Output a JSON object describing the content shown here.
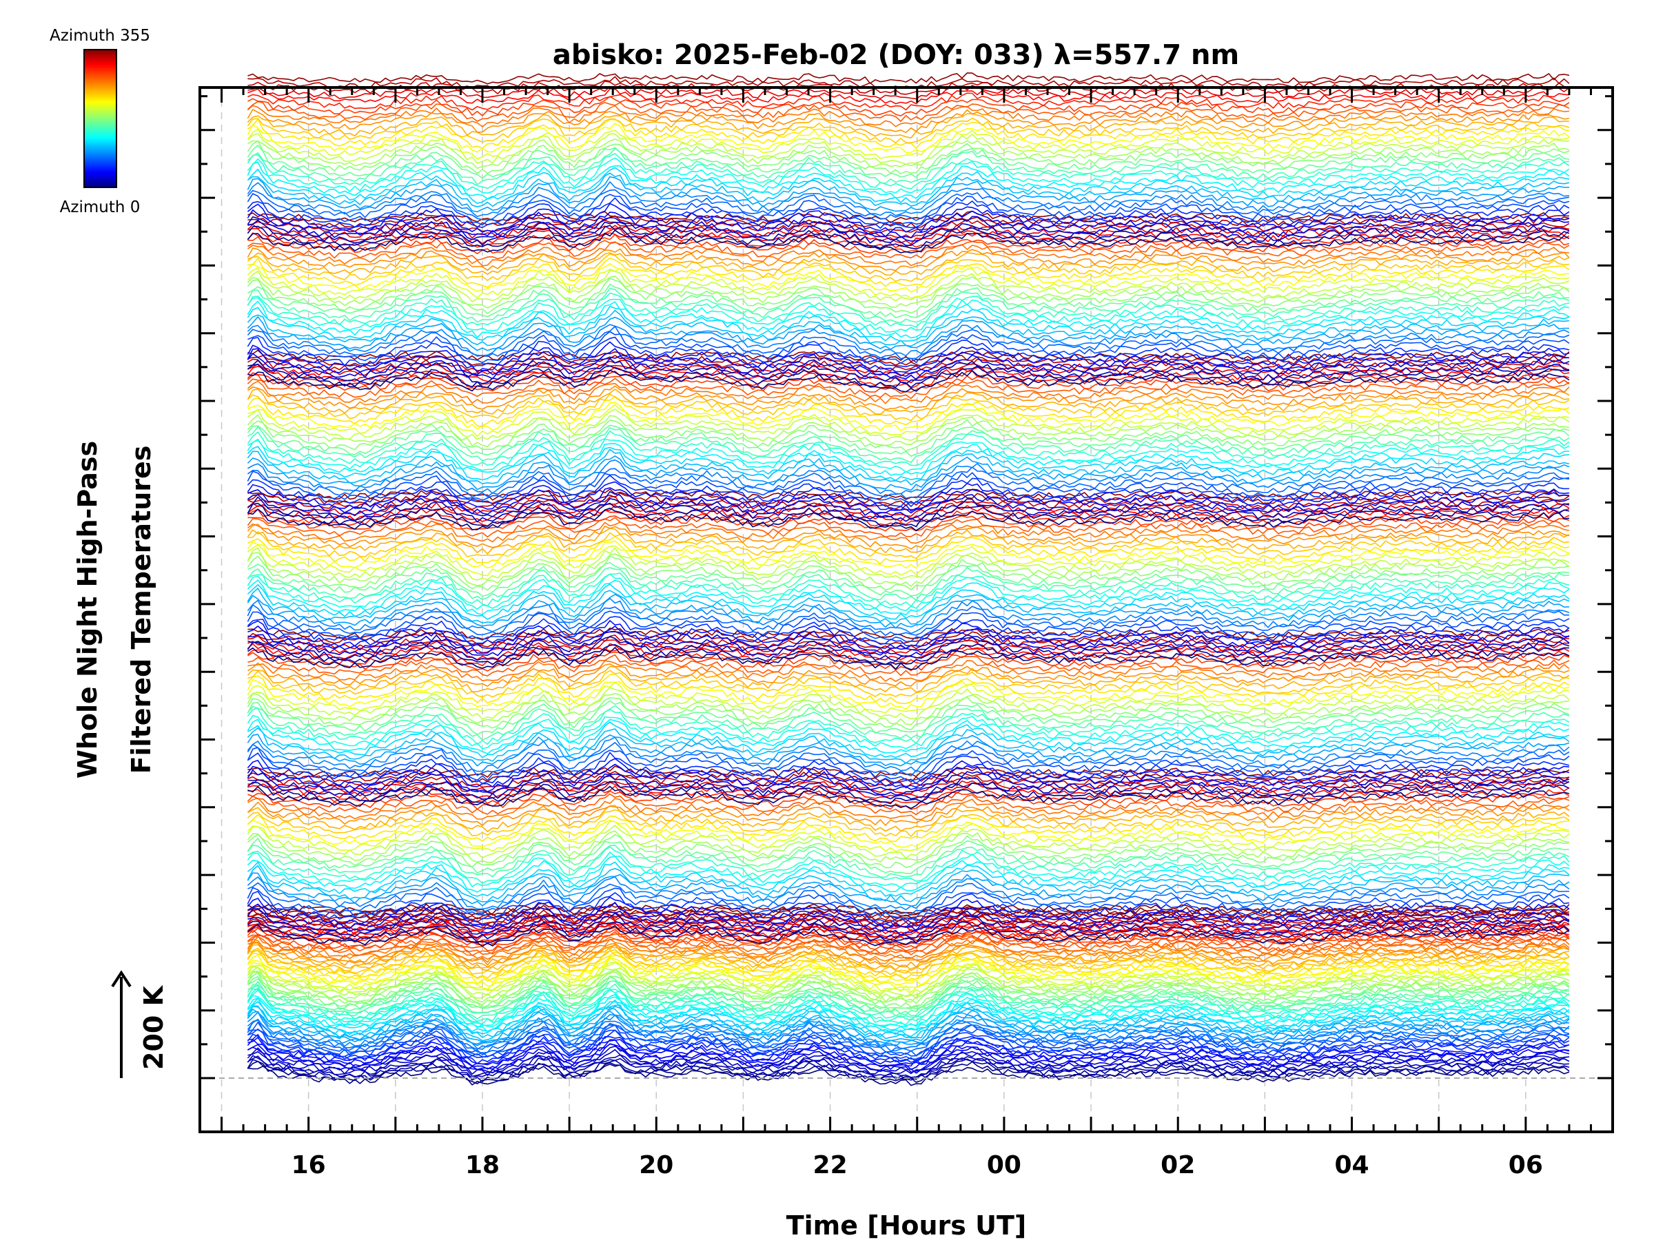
{
  "chart_data": {
    "type": "line",
    "title": "abisko: 2025-Feb-02 (DOY: 033) λ=557.7 nm",
    "xlabel": "Time [Hours UT]",
    "ylabel_line1": "Whole Night High-Pass",
    "ylabel_line2": "Filtered Temperatures",
    "scale_label": "200 K",
    "x_ticks": [
      "16",
      "18",
      "20",
      "22",
      "00",
      "02",
      "04",
      "06"
    ],
    "x_tick_hours": [
      16,
      18,
      20,
      22,
      24,
      26,
      28,
      30
    ],
    "xlim_hours": [
      14.75,
      31.0
    ],
    "colorbar": {
      "top_label": "Azimuth 355",
      "bottom_label": "Azimuth 0",
      "min": 0,
      "max": 355
    },
    "colormap": "jet",
    "grid": "dashed vertical at hours",
    "time_range_hours": [
      15.3,
      30.5
    ],
    "stacked_groups": 7,
    "azimuth_step": 5
  }
}
